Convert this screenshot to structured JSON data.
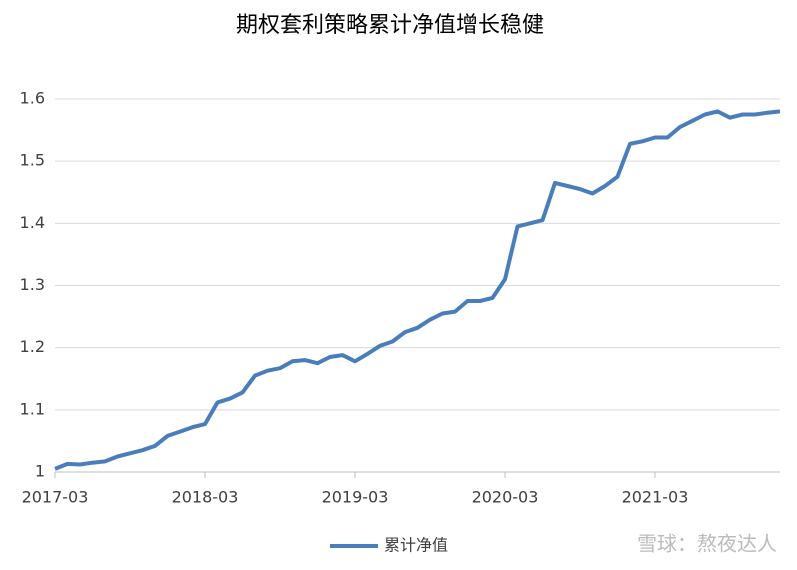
{
  "chart_data": {
    "type": "line",
    "title": "期权套利策略累计净值增长稳健",
    "x": [
      "2017-03",
      "2017-04",
      "2017-05",
      "2017-06",
      "2017-07",
      "2017-08",
      "2017-09",
      "2017-10",
      "2017-11",
      "2017-12",
      "2018-01",
      "2018-02",
      "2018-03",
      "2018-04",
      "2018-05",
      "2018-06",
      "2018-07",
      "2018-08",
      "2018-09",
      "2018-10",
      "2018-11",
      "2018-12",
      "2019-01",
      "2019-02",
      "2019-03",
      "2019-04",
      "2019-05",
      "2019-06",
      "2019-07",
      "2019-08",
      "2019-09",
      "2019-10",
      "2019-11",
      "2019-12",
      "2020-01",
      "2020-02",
      "2020-03",
      "2020-04",
      "2020-05",
      "2020-06",
      "2020-07",
      "2020-08",
      "2020-09",
      "2020-10",
      "2020-11",
      "2020-12",
      "2021-01",
      "2021-02",
      "2021-03",
      "2021-04",
      "2021-05",
      "2021-06",
      "2021-07",
      "2021-08",
      "2021-09",
      "2021-10",
      "2021-11",
      "2021-12",
      "2022-01"
    ],
    "series": [
      {
        "name": "累计净值",
        "color": "#4a7ebb",
        "values": [
          1.005,
          1.013,
          1.012,
          1.015,
          1.017,
          1.025,
          1.03,
          1.035,
          1.042,
          1.058,
          1.065,
          1.072,
          1.077,
          1.112,
          1.118,
          1.128,
          1.155,
          1.163,
          1.167,
          1.178,
          1.18,
          1.175,
          1.185,
          1.188,
          1.178,
          1.19,
          1.203,
          1.21,
          1.225,
          1.232,
          1.245,
          1.255,
          1.258,
          1.275,
          1.275,
          1.28,
          1.31,
          1.395,
          1.4,
          1.405,
          1.465,
          1.46,
          1.455,
          1.448,
          1.46,
          1.475,
          1.528,
          1.532,
          1.538,
          1.538,
          1.555,
          1.565,
          1.575,
          1.58,
          1.57,
          1.575,
          1.575,
          1.578,
          1.58
        ]
      }
    ],
    "xlim": [
      "2017-03",
      "2022-01"
    ],
    "xticks": [
      "2017-03",
      "2018-03",
      "2019-03",
      "2020-03",
      "2021-03"
    ],
    "ylim": [
      1,
      1.6
    ],
    "yticks": [
      1,
      1.1,
      1.2,
      1.3,
      1.4,
      1.5,
      1.6
    ],
    "grid": true,
    "legend": "bottom",
    "watermark": "雪球：熬夜达人"
  }
}
